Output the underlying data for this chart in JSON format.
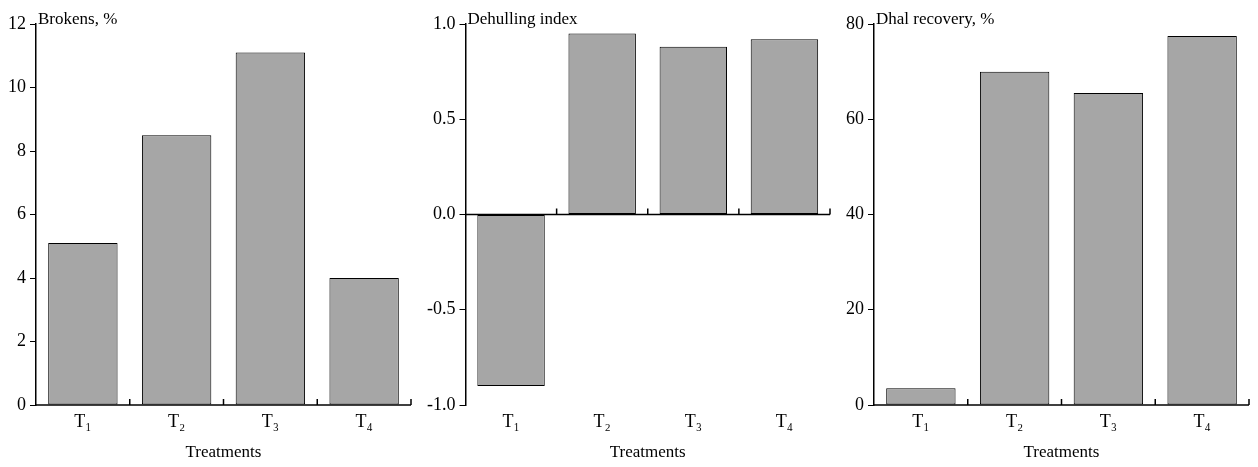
{
  "chart_data": [
    {
      "type": "bar",
      "ylabel": "Brokens, %",
      "xlabel": "Treatments",
      "categories": [
        "T₁",
        "T₂",
        "T₃",
        "T₄"
      ],
      "values": [
        5.1,
        8.5,
        11.1,
        4.0
      ],
      "color": "#a6a6a6",
      "ylim": [
        0,
        12
      ],
      "yticks": [
        0,
        2,
        4,
        6,
        8,
        10,
        12
      ]
    },
    {
      "type": "bar",
      "ylabel": "Dehulling index",
      "xlabel": "Treatments",
      "categories": [
        "T₁",
        "T₂",
        "T₃",
        "T₄"
      ],
      "values": [
        -0.9,
        0.95,
        0.88,
        0.92
      ],
      "color": "#a6a6a6",
      "ylim": [
        -1,
        1
      ],
      "yticks": [
        {
          "value": -1,
          "label": "-1.0"
        },
        {
          "value": -0.5,
          "label": "-0.5"
        },
        {
          "value": 0,
          "label": "0.0"
        },
        {
          "value": 0.5,
          "label": "0.5"
        },
        {
          "value": 1,
          "label": "1.0"
        }
      ]
    },
    {
      "type": "bar",
      "ylabel": "Dhal recovery, %",
      "xlabel": "Treatments",
      "categories": [
        "T₁",
        "T₂",
        "T₃",
        "T₄"
      ],
      "values": [
        3.5,
        70,
        65.5,
        77.5
      ],
      "color": "#a6a6a6",
      "ylim": [
        0,
        80
      ],
      "yticks": [
        0,
        20,
        40,
        60,
        80
      ]
    }
  ]
}
